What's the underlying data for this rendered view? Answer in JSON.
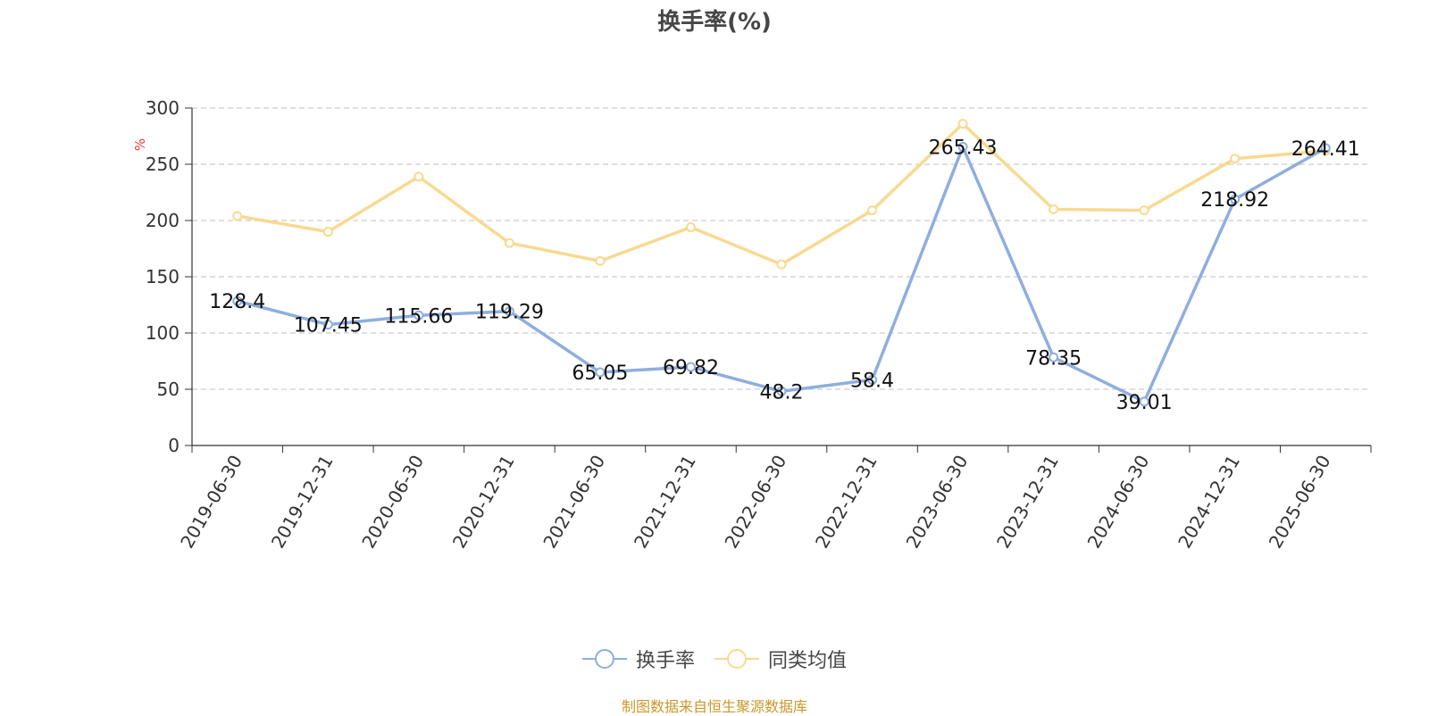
{
  "chart_data": {
    "type": "line",
    "title": "换手率(%)",
    "ylabel": "%",
    "ylim": [
      0,
      300
    ],
    "yticks": [
      0,
      50,
      100,
      150,
      200,
      250,
      300
    ],
    "grid": true,
    "legend_position": "bottom",
    "categories": [
      "2019-06-30",
      "2019-12-31",
      "2020-06-30",
      "2020-12-31",
      "2021-06-30",
      "2021-12-31",
      "2022-06-30",
      "2022-12-31",
      "2023-06-30",
      "2023-12-31",
      "2024-06-30",
      "2024-12-31",
      "2025-06-30"
    ],
    "series": [
      {
        "name": "换手率",
        "color": "#8eaede",
        "show_labels": true,
        "values": [
          128.4,
          107.45,
          115.66,
          119.29,
          65.05,
          69.82,
          48.2,
          58.4,
          265.43,
          78.35,
          39.01,
          218.92,
          264.41
        ]
      },
      {
        "name": "同类均值",
        "color": "#f9d991",
        "show_labels": false,
        "values": [
          204,
          190,
          239,
          180,
          164,
          194,
          161,
          209,
          286,
          210,
          209,
          255,
          262
        ]
      }
    ]
  },
  "source_note": "制图数据来自恒生聚源数据库",
  "colors": {
    "title": "#464646",
    "source": "#c9972b",
    "grid": "#cccccc",
    "axis_label_unit": "#e53935"
  }
}
